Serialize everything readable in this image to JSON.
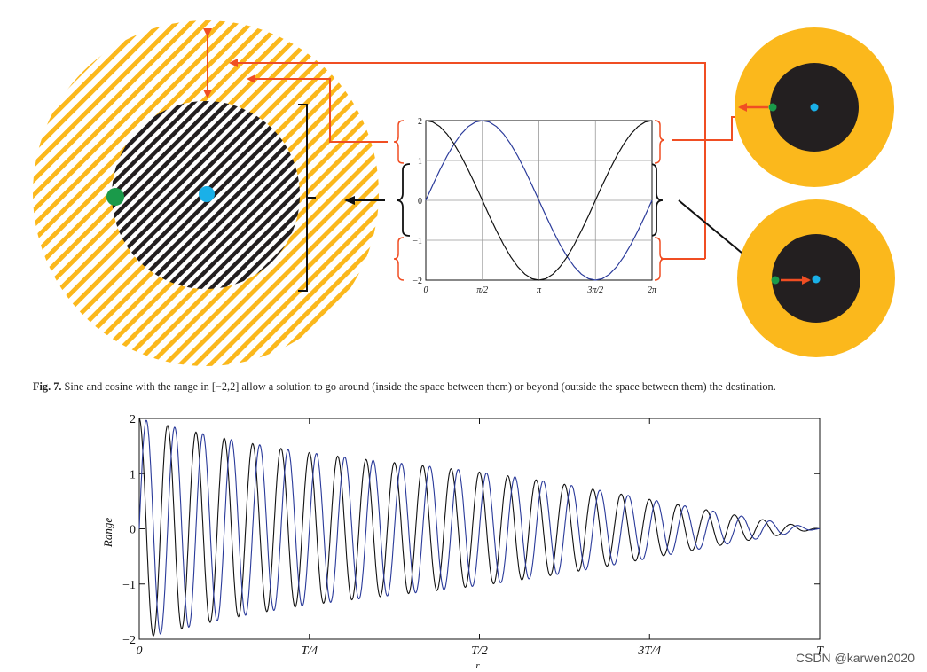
{
  "figure_caption": {
    "label": "Fig. 7.",
    "text": "Sine and cosine with the range in [−2,2] allow a solution to go around (inside the space between them) or beyond (outside the space between them) the destination."
  },
  "colors": {
    "orange": "#fbb81c",
    "dark": "#231f20",
    "red_arrow": "#f04e23",
    "green_dot": "#1a9a4a",
    "blue_dot": "#1ab0e8",
    "sine": "#2a3a9a",
    "cosine": "#111111"
  },
  "chart_data": [
    {
      "type": "line",
      "x": [
        0,
        0.19635,
        0.3927,
        0.58905,
        0.7854,
        0.98175,
        1.1781,
        1.37445,
        1.5708,
        1.76715,
        1.9635,
        2.15985,
        2.3562,
        2.55255,
        2.7489,
        2.94525,
        3.14159,
        3.33794,
        3.53429,
        3.73064,
        3.92699,
        4.12334,
        4.31969,
        4.51604,
        4.71239,
        4.90874,
        5.10509,
        5.30144,
        5.49779,
        5.69414,
        5.89049,
        6.08684,
        6.28319
      ],
      "series": [
        {
          "name": "",
          "color": "#2a3a9a",
          "values": [
            0,
            0.39,
            0.765,
            1.111,
            1.414,
            1.663,
            1.848,
            1.962,
            2,
            1.962,
            1.848,
            1.663,
            1.414,
            1.111,
            0.765,
            0.39,
            0,
            -0.39,
            -0.765,
            -1.111,
            -1.414,
            -1.663,
            -1.848,
            -1.962,
            -2,
            -1.962,
            -1.848,
            -1.663,
            -1.414,
            -1.111,
            -0.765,
            -0.39,
            0
          ]
        },
        {
          "name": "",
          "color": "#111111",
          "values": [
            2,
            1.962,
            1.848,
            1.663,
            1.414,
            1.111,
            0.765,
            0.39,
            0,
            -0.39,
            -0.765,
            -1.111,
            -1.414,
            -1.663,
            -1.848,
            -1.962,
            -2,
            -1.962,
            -1.848,
            -1.663,
            -1.414,
            -1.111,
            -0.765,
            -0.39,
            0,
            0.39,
            0.765,
            1.111,
            1.414,
            1.663,
            1.848,
            1.962,
            2
          ]
        }
      ],
      "xticks": [
        "0",
        "π/2",
        "π",
        "3π/2",
        "2π"
      ],
      "yticks": [
        "−2",
        "−1",
        "0",
        "1",
        "2"
      ],
      "ylim": [
        -2,
        2
      ],
      "grid": true,
      "title": "",
      "xlabel": "",
      "ylabel": ""
    },
    {
      "type": "line",
      "x_normalized_range": [
        0,
        1
      ],
      "series": [
        {
          "name": "",
          "color": "#111111",
          "function": "r1 * sin(2*pi*x*24 + pi/2) * (1 - x)",
          "amplitude_start": 2,
          "amplitude_end": 0
        },
        {
          "name": "",
          "color": "#2a3a9a",
          "function": "r1 * sin(2*pi*x*24) * (1 - x)",
          "amplitude_start": 2,
          "amplitude_end": 0
        }
      ],
      "xticks": [
        "0",
        "T/4",
        "T/2",
        "3T/4",
        "T"
      ],
      "yticks": [
        "−2",
        "−1",
        "0",
        "1",
        "2"
      ],
      "ylim": [
        -2,
        2
      ],
      "xlabel": "r",
      "ylabel": "Range",
      "grid": false,
      "title": ""
    }
  ],
  "watermark": "CSDN @karwen2020"
}
